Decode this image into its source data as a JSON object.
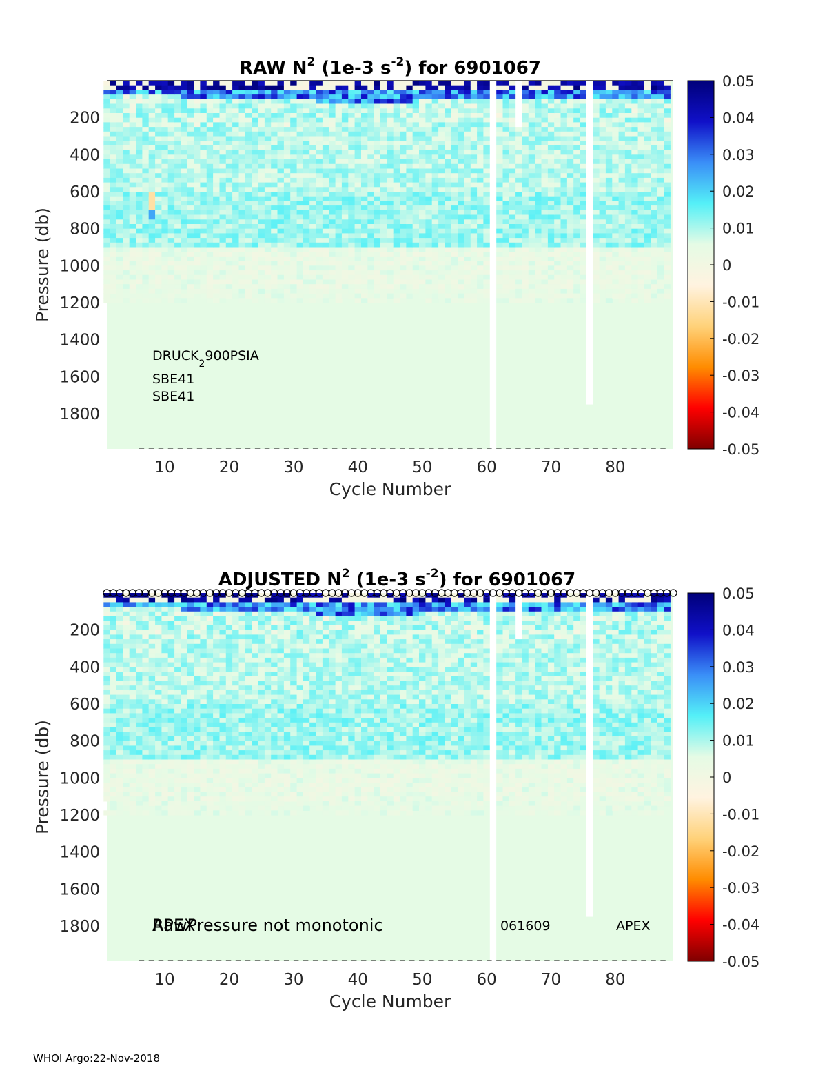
{
  "footer": "WHOI Argo:22-Nov-2018",
  "colorbar": {
    "ticks": [
      "0.05",
      "0.04",
      "0.03",
      "0.02",
      "0.01",
      "0",
      "-0.01",
      "-0.02",
      "-0.03",
      "-0.04",
      "-0.05"
    ],
    "range": [
      -0.05,
      0.05
    ],
    "colormap_stops": [
      "#7f0000",
      "#ff0000",
      "#ff8c00",
      "#ffd27a",
      "#fff3e0",
      "#e5fbe5",
      "#54f0f7",
      "#3a8ef7",
      "#1010c8",
      "#00007a"
    ]
  },
  "chart_data": [
    {
      "type": "heatmap",
      "title_parts": {
        "prefix": "RAW N",
        "sup1": "2",
        "mid": " (1e-3 s",
        "sup2": "-2",
        "suffix": ") for 6901067"
      },
      "xlabel": "Cycle Number",
      "ylabel": "Pressure (db)",
      "xlim": [
        1,
        89
      ],
      "ylim": [
        1990,
        0
      ],
      "xticks": [
        "10",
        "20",
        "30",
        "40",
        "50",
        "60",
        "70",
        "80"
      ],
      "yticks": [
        "200",
        "400",
        "600",
        "800",
        "1000",
        "1200",
        "1400",
        "1600",
        "1800"
      ],
      "missing_cycles": [
        61,
        76
      ],
      "missing_partial": [
        {
          "cycle": 65,
          "pmax": 250
        }
      ],
      "annotations": [
        {
          "text": "DRUCK",
          "sub": "2",
          "tail": "900PSIA"
        },
        {
          "text": "SBE41"
        },
        {
          "text": "SBE41"
        }
      ],
      "bottom_annotations": [],
      "qc_markers": false
    },
    {
      "type": "heatmap",
      "title_parts": {
        "prefix": "ADJUSTED N",
        "sup1": "2",
        "mid": " (1e-3 s",
        "sup2": "-2",
        "suffix": ") for 6901067"
      },
      "xlabel": "Cycle Number",
      "ylabel": "Pressure (db)",
      "xlim": [
        1,
        89
      ],
      "ylim": [
        1990,
        0
      ],
      "xticks": [
        "10",
        "20",
        "30",
        "40",
        "50",
        "60",
        "70",
        "80"
      ],
      "yticks": [
        "200",
        "400",
        "600",
        "800",
        "1000",
        "1200",
        "1400",
        "1600",
        "1800"
      ],
      "missing_cycles": [
        61,
        76
      ],
      "missing_partial": [
        {
          "cycle": 65,
          "pmax": 250
        }
      ],
      "annotations": [],
      "bottom_annotations": [
        {
          "text": "RawPressure not monotonic",
          "cycle": 8,
          "size": "large"
        },
        {
          "text": "APEX",
          "cycle": 8,
          "size": "large"
        },
        {
          "text": "061609",
          "cycle": 63,
          "size": "small"
        },
        {
          "text": "APEX",
          "cycle": 79,
          "size": "small"
        }
      ],
      "qc_markers": true
    }
  ]
}
